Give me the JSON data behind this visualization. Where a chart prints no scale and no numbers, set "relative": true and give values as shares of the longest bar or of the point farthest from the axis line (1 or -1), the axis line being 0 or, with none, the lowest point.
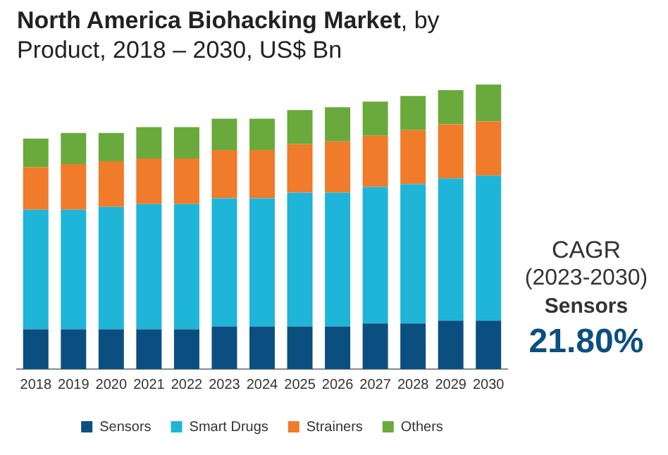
{
  "chart_data": {
    "type": "bar",
    "title": "North America Biohacking Market, by Product, 2018 – 2030, US$ Bn",
    "stacked": true,
    "relative": true,
    "legend": "bottom",
    "grid": false,
    "categories": [
      "2018",
      "2019",
      "2020",
      "2021",
      "2022",
      "2023",
      "2024",
      "2025",
      "2026",
      "2027",
      "2028",
      "2029",
      "2030"
    ],
    "series": [
      {
        "name": "Sensors",
        "color": "#0b4f80",
        "values": [
          0.14,
          0.14,
          0.14,
          0.14,
          0.14,
          0.15,
          0.15,
          0.15,
          0.15,
          0.16,
          0.16,
          0.17,
          0.17
        ]
      },
      {
        "name": "Smart Drugs",
        "color": "#1fb5d8",
        "values": [
          0.42,
          0.42,
          0.43,
          0.44,
          0.44,
          0.45,
          0.45,
          0.47,
          0.47,
          0.48,
          0.49,
          0.5,
          0.51
        ]
      },
      {
        "name": "Strainers",
        "color": "#f07b2a",
        "values": [
          0.15,
          0.16,
          0.16,
          0.16,
          0.16,
          0.17,
          0.17,
          0.17,
          0.18,
          0.18,
          0.19,
          0.19,
          0.19
        ]
      },
      {
        "name": "Others",
        "color": "#6aaa3c",
        "values": [
          0.1,
          0.11,
          0.1,
          0.11,
          0.11,
          0.11,
          0.11,
          0.12,
          0.12,
          0.12,
          0.12,
          0.12,
          0.13
        ]
      }
    ],
    "annotations": [
      "CAGR",
      "(2023-2030)",
      "Sensors",
      "21.80%"
    ]
  }
}
